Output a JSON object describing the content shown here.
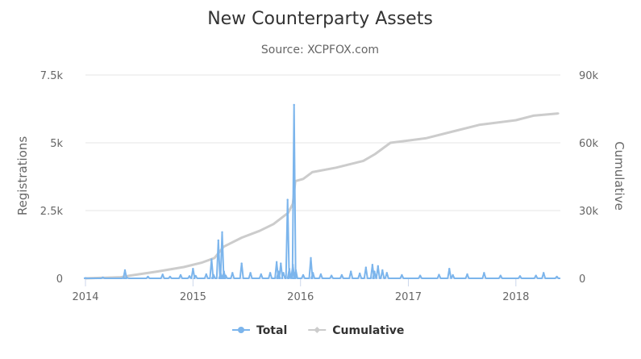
{
  "chart_data": {
    "type": "line",
    "title": "New Counterparty Assets",
    "subtitle": "Source: XCPFOX.com",
    "xlabel": "",
    "ylabel": "Registrations",
    "y2label": "Cumulative",
    "x_range": [
      "2014-01-01",
      "2018-06-01"
    ],
    "x_ticks": [
      "2014",
      "2015",
      "2016",
      "2017",
      "2018"
    ],
    "ylim": [
      0,
      7500
    ],
    "y_ticks": [
      "0",
      "2.5k",
      "5k",
      "7.5k"
    ],
    "y2lim": [
      0,
      90000
    ],
    "y2_ticks": [
      "0",
      "30k",
      "60k",
      "90k"
    ],
    "grid": true,
    "legend_position": "bottom-center",
    "series": [
      {
        "name": "Total",
        "axis": "left",
        "color": "#7cb5ec",
        "points": [
          [
            "2014-01-01",
            10
          ],
          [
            "2014-03-01",
            30
          ],
          [
            "2014-05-10",
            20
          ],
          [
            "2014-05-15",
            300
          ],
          [
            "2014-05-22",
            25
          ],
          [
            "2014-08-01",
            60
          ],
          [
            "2014-09-20",
            140
          ],
          [
            "2014-10-15",
            60
          ],
          [
            "2014-11-20",
            120
          ],
          [
            "2014-12-20",
            80
          ],
          [
            "2015-01-01",
            350
          ],
          [
            "2015-01-10",
            90
          ],
          [
            "2015-02-15",
            150
          ],
          [
            "2015-03-05",
            700
          ],
          [
            "2015-03-12",
            120
          ],
          [
            "2015-03-28",
            1400
          ],
          [
            "2015-04-05",
            180
          ],
          [
            "2015-04-10",
            1700
          ],
          [
            "2015-04-16",
            250
          ],
          [
            "2015-04-22",
            100
          ],
          [
            "2015-05-15",
            200
          ],
          [
            "2015-06-15",
            550
          ],
          [
            "2015-07-15",
            200
          ],
          [
            "2015-08-20",
            150
          ],
          [
            "2015-09-20",
            200
          ],
          [
            "2015-10-12",
            600
          ],
          [
            "2015-10-18",
            250
          ],
          [
            "2015-10-26",
            550
          ],
          [
            "2015-11-04",
            200
          ],
          [
            "2015-11-18",
            2900
          ],
          [
            "2015-11-24",
            350
          ],
          [
            "2015-12-06",
            500
          ],
          [
            "2015-12-10",
            6400
          ],
          [
            "2015-12-16",
            300
          ],
          [
            "2016-01-10",
            120
          ],
          [
            "2016-02-05",
            750
          ],
          [
            "2016-02-12",
            200
          ],
          [
            "2016-03-10",
            150
          ],
          [
            "2016-04-15",
            100
          ],
          [
            "2016-05-20",
            120
          ],
          [
            "2016-06-20",
            250
          ],
          [
            "2016-07-20",
            180
          ],
          [
            "2016-08-10",
            400
          ],
          [
            "2016-09-01",
            500
          ],
          [
            "2016-09-08",
            250
          ],
          [
            "2016-09-20",
            450
          ],
          [
            "2016-10-05",
            300
          ],
          [
            "2016-10-20",
            200
          ],
          [
            "2016-12-10",
            120
          ],
          [
            "2017-02-10",
            100
          ],
          [
            "2017-04-15",
            130
          ],
          [
            "2017-05-20",
            350
          ],
          [
            "2017-06-01",
            120
          ],
          [
            "2017-07-20",
            150
          ],
          [
            "2017-09-15",
            200
          ],
          [
            "2017-11-10",
            100
          ],
          [
            "2018-01-15",
            80
          ],
          [
            "2018-03-10",
            100
          ],
          [
            "2018-04-05",
            200
          ],
          [
            "2018-05-20",
            60
          ]
        ]
      },
      {
        "name": "Cumulative",
        "axis": "right",
        "color": "#cccccc",
        "points": [
          [
            "2014-01-01",
            0
          ],
          [
            "2014-05-01",
            500
          ],
          [
            "2014-06-01",
            1200
          ],
          [
            "2014-09-01",
            3000
          ],
          [
            "2014-12-01",
            5000
          ],
          [
            "2015-02-01",
            7000
          ],
          [
            "2015-03-15",
            9000
          ],
          [
            "2015-04-15",
            14000
          ],
          [
            "2015-06-15",
            18000
          ],
          [
            "2015-08-15",
            21000
          ],
          [
            "2015-10-01",
            24000
          ],
          [
            "2015-11-20",
            29000
          ],
          [
            "2015-12-06",
            33000
          ],
          [
            "2015-12-14",
            43000
          ],
          [
            "2016-01-10",
            44000
          ],
          [
            "2016-02-10",
            47000
          ],
          [
            "2016-05-01",
            49000
          ],
          [
            "2016-08-01",
            52000
          ],
          [
            "2016-09-10",
            55000
          ],
          [
            "2016-11-01",
            60000
          ],
          [
            "2017-03-01",
            62000
          ],
          [
            "2017-06-01",
            65000
          ],
          [
            "2017-09-01",
            68000
          ],
          [
            "2018-01-01",
            70000
          ],
          [
            "2018-03-01",
            72000
          ],
          [
            "2018-05-25",
            73000
          ]
        ]
      }
    ]
  }
}
